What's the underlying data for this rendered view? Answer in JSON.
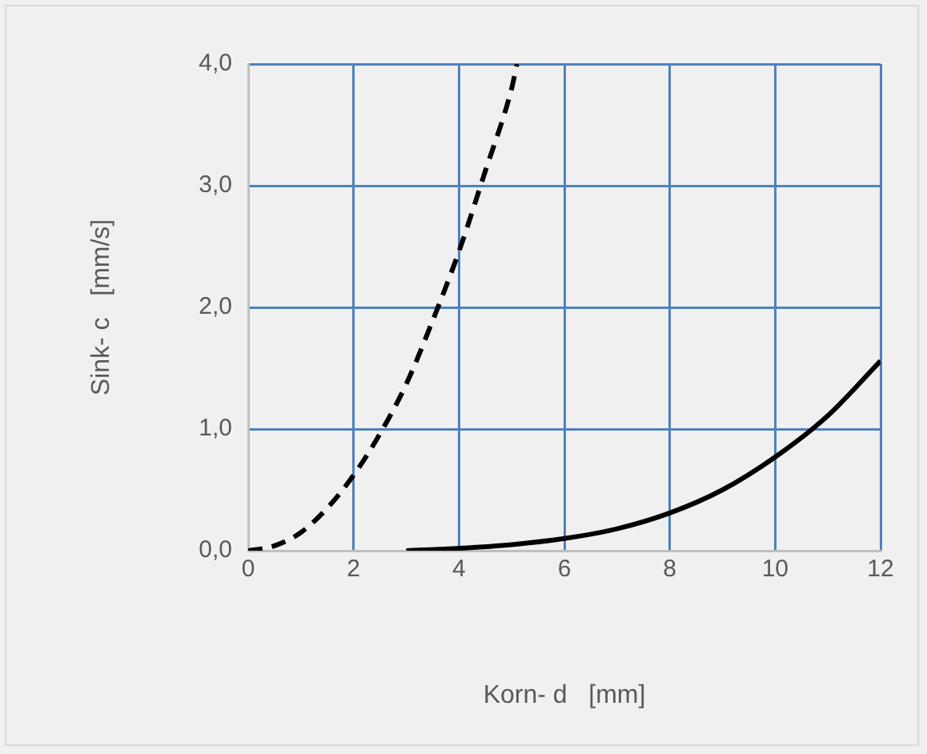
{
  "chart_data": {
    "type": "line",
    "xlabel": "Korn- d   [mm]",
    "ylabel": "Sink- c   [mm/s]",
    "xlim": [
      0,
      12
    ],
    "xticks": [
      0,
      2,
      4,
      6,
      8,
      10,
      12
    ],
    "ylim": [
      0,
      4
    ],
    "yticks": [
      {
        "value": 0,
        "label": "0,0"
      },
      {
        "value": 1,
        "label": "1,0"
      },
      {
        "value": 2,
        "label": "2,0"
      },
      {
        "value": 3,
        "label": "3,0"
      },
      {
        "value": 4,
        "label": "4,0"
      }
    ],
    "grid": true,
    "legend": false,
    "marker": "none",
    "series": [
      {
        "color": "#000000",
        "line_style": "dashed",
        "x": [
          0,
          0.5,
          1,
          1.5,
          2,
          2.5,
          3,
          3.5,
          4,
          4.5,
          5,
          5.1
        ],
        "values": [
          0,
          0.04,
          0.15,
          0.35,
          0.62,
          0.96,
          1.37,
          1.89,
          2.46,
          3.12,
          3.8,
          4.0
        ]
      },
      {
        "color": "#000000",
        "line_style": "solid",
        "x": [
          3,
          4,
          5,
          6,
          7,
          8,
          9,
          10,
          11,
          12
        ],
        "values": [
          0,
          0.02,
          0.05,
          0.1,
          0.18,
          0.31,
          0.5,
          0.77,
          1.11,
          1.56
        ]
      }
    ]
  }
}
